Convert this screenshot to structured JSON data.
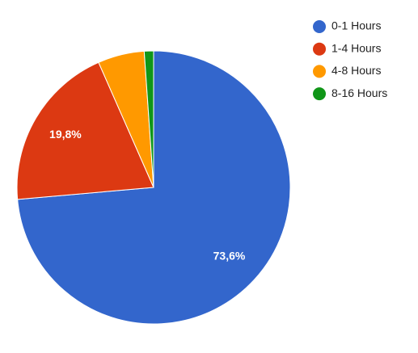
{
  "chart_data": {
    "type": "pie",
    "categories": [
      "0-1 Hours",
      "1-4 Hours",
      "4-8 Hours",
      "8-16 Hours"
    ],
    "values": [
      73.6,
      19.8,
      5.5,
      1.1
    ],
    "value_labels": [
      "73,6%",
      "19,8%",
      null,
      null
    ],
    "colors": [
      "#3366cc",
      "#dc3912",
      "#ff9900",
      "#109618"
    ],
    "legend": "right"
  }
}
